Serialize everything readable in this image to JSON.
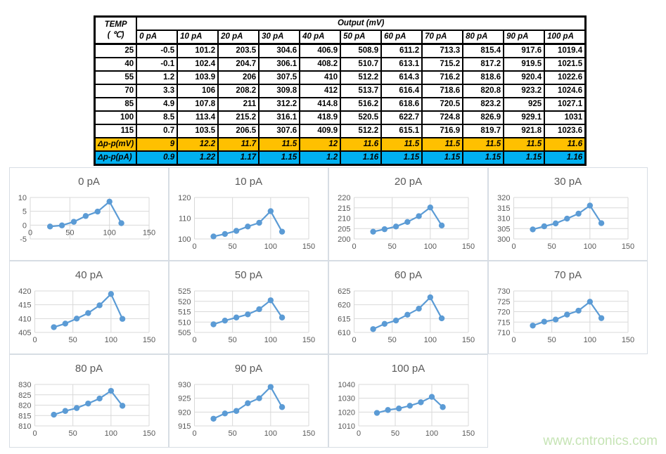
{
  "page": {
    "watermark": "www.cntronics.com",
    "colors": {
      "accent_line": "#5B9BD5",
      "grid_line": "#d9d9d9",
      "axis_text": "#595959",
      "title_text": "#595959",
      "summary_orange": "#FFC000",
      "summary_blue": "#00B0F0",
      "table_border": "#000000"
    }
  },
  "table": {
    "corner_line1": "TEMP",
    "corner_line2": "( ℃)",
    "output_header": "Output (mV)",
    "col_headers": [
      "0 pA",
      "10 pA",
      "20 pA",
      "30 pA",
      "40 pA",
      "50 pA",
      "60 pA",
      "70 pA",
      "80 pA",
      "90 pA",
      "100 pA"
    ],
    "rows": [
      {
        "temp": "25",
        "values": [
          "-0.5",
          "101.2",
          "203.5",
          "304.6",
          "406.9",
          "508.9",
          "611.2",
          "713.3",
          "815.4",
          "917.6",
          "1019.4"
        ]
      },
      {
        "temp": "40",
        "values": [
          "-0.1",
          "102.4",
          "204.7",
          "306.1",
          "408.2",
          "510.7",
          "613.1",
          "715.2",
          "817.2",
          "919.5",
          "1021.5"
        ]
      },
      {
        "temp": "55",
        "values": [
          "1.2",
          "103.9",
          "206",
          "307.5",
          "410",
          "512.2",
          "614.3",
          "716.2",
          "818.6",
          "920.4",
          "1022.6"
        ]
      },
      {
        "temp": "70",
        "values": [
          "3.3",
          "106",
          "208.2",
          "309.8",
          "412",
          "513.7",
          "616.4",
          "718.6",
          "820.8",
          "923.2",
          "1024.6"
        ]
      },
      {
        "temp": "85",
        "values": [
          "4.9",
          "107.8",
          "211",
          "312.2",
          "414.8",
          "516.2",
          "618.6",
          "720.5",
          "823.2",
          "925",
          "1027.1"
        ]
      },
      {
        "temp": "100",
        "values": [
          "8.5",
          "113.4",
          "215.2",
          "316.1",
          "418.9",
          "520.5",
          "622.7",
          "724.8",
          "826.9",
          "929.1",
          "1031"
        ]
      },
      {
        "temp": "115",
        "values": [
          "0.7",
          "103.5",
          "206.5",
          "307.6",
          "409.9",
          "512.2",
          "615.1",
          "716.9",
          "819.7",
          "921.8",
          "1023.6"
        ]
      }
    ],
    "summary_rows": [
      {
        "label": "Δp-p(mV)",
        "bg": "#FFC000",
        "values": [
          "9",
          "12.2",
          "11.7",
          "11.5",
          "12",
          "11.6",
          "11.5",
          "11.5",
          "11.5",
          "11.5",
          "11.6"
        ]
      },
      {
        "label": "Δp-p(pA)",
        "bg": "#00B0F0",
        "values": [
          "0.9",
          "1.22",
          "1.17",
          "1.15",
          "1.2",
          "1.16",
          "1.15",
          "1.15",
          "1.15",
          "1.15",
          "1.16"
        ]
      }
    ]
  },
  "chart_data": [
    {
      "type": "line",
      "title": "0 pA",
      "x": [
        25,
        40,
        55,
        70,
        85,
        100,
        115
      ],
      "values": [
        -0.5,
        -0.1,
        1.2,
        3.3,
        4.9,
        8.5,
        0.7
      ],
      "xlim": [
        0,
        150
      ],
      "xstep": 50,
      "ylim": [
        -5,
        10
      ],
      "ystep": 5,
      "grid": true,
      "legend": "none"
    },
    {
      "type": "line",
      "title": "10 pA",
      "x": [
        25,
        40,
        55,
        70,
        85,
        100,
        115
      ],
      "values": [
        101.2,
        102.4,
        103.9,
        106,
        107.8,
        113.4,
        103.5
      ],
      "xlim": [
        0,
        150
      ],
      "xstep": 50,
      "ylim": [
        100,
        120
      ],
      "ystep": 10,
      "grid": true,
      "legend": "none"
    },
    {
      "type": "line",
      "title": "20 pA",
      "x": [
        25,
        40,
        55,
        70,
        85,
        100,
        115
      ],
      "values": [
        203.5,
        204.7,
        206,
        208.2,
        211,
        215.2,
        206.5
      ],
      "xlim": [
        0,
        150
      ],
      "xstep": 50,
      "ylim": [
        200,
        220
      ],
      "ystep": 5,
      "grid": true,
      "legend": "none"
    },
    {
      "type": "line",
      "title": "30 pA",
      "x": [
        25,
        40,
        55,
        70,
        85,
        100,
        115
      ],
      "values": [
        304.6,
        306.1,
        307.5,
        309.8,
        312.2,
        316.1,
        307.6
      ],
      "xlim": [
        0,
        150
      ],
      "xstep": 50,
      "ylim": [
        300,
        320
      ],
      "ystep": 5,
      "grid": true,
      "legend": "none"
    },
    {
      "type": "line",
      "title": "40 pA",
      "x": [
        25,
        40,
        55,
        70,
        85,
        100,
        115
      ],
      "values": [
        406.9,
        408.2,
        410,
        412,
        414.8,
        418.9,
        409.9
      ],
      "xlim": [
        0,
        150
      ],
      "xstep": 50,
      "ylim": [
        405,
        420
      ],
      "ystep": 5,
      "grid": true,
      "legend": "none"
    },
    {
      "type": "line",
      "title": "50 pA",
      "x": [
        25,
        40,
        55,
        70,
        85,
        100,
        115
      ],
      "values": [
        508.9,
        510.7,
        512.2,
        513.7,
        516.2,
        520.5,
        512.2
      ],
      "xlim": [
        0,
        150
      ],
      "xstep": 50,
      "ylim": [
        505,
        525
      ],
      "ystep": 5,
      "grid": true,
      "legend": "none"
    },
    {
      "type": "line",
      "title": "60 pA",
      "x": [
        25,
        40,
        55,
        70,
        85,
        100,
        115
      ],
      "values": [
        611.2,
        613.1,
        614.3,
        616.4,
        618.6,
        622.7,
        615.1
      ],
      "xlim": [
        0,
        150
      ],
      "xstep": 50,
      "ylim": [
        610,
        625
      ],
      "ystep": 5,
      "grid": true,
      "legend": "none"
    },
    {
      "type": "line",
      "title": "70 pA",
      "x": [
        25,
        40,
        55,
        70,
        85,
        100,
        115
      ],
      "values": [
        713.3,
        715.2,
        716.2,
        718.6,
        720.5,
        724.8,
        716.9
      ],
      "xlim": [
        0,
        150
      ],
      "xstep": 50,
      "ylim": [
        710,
        730
      ],
      "ystep": 5,
      "grid": true,
      "legend": "none"
    },
    {
      "type": "line",
      "title": "80 pA",
      "x": [
        25,
        40,
        55,
        70,
        85,
        100,
        115
      ],
      "values": [
        815.4,
        817.2,
        818.6,
        820.8,
        823.2,
        826.9,
        819.7
      ],
      "xlim": [
        0,
        150
      ],
      "xstep": 50,
      "ylim": [
        810,
        830
      ],
      "ystep": 5,
      "grid": true,
      "legend": "none"
    },
    {
      "type": "line",
      "title": "90 pA",
      "x": [
        25,
        40,
        55,
        70,
        85,
        100,
        115
      ],
      "values": [
        917.6,
        919.5,
        920.4,
        923.2,
        925,
        929.1,
        921.8
      ],
      "xlim": [
        0,
        150
      ],
      "xstep": 50,
      "ylim": [
        915,
        930
      ],
      "ystep": 5,
      "grid": true,
      "legend": "none"
    },
    {
      "type": "line",
      "title": "100 pA",
      "x": [
        25,
        40,
        55,
        70,
        85,
        100,
        115
      ],
      "values": [
        1019.4,
        1021.5,
        1022.6,
        1024.6,
        1027.1,
        1031,
        1023.6
      ],
      "xlim": [
        0,
        150
      ],
      "xstep": 50,
      "ylim": [
        1010,
        1040
      ],
      "ystep": 10,
      "grid": true,
      "legend": "none"
    }
  ]
}
